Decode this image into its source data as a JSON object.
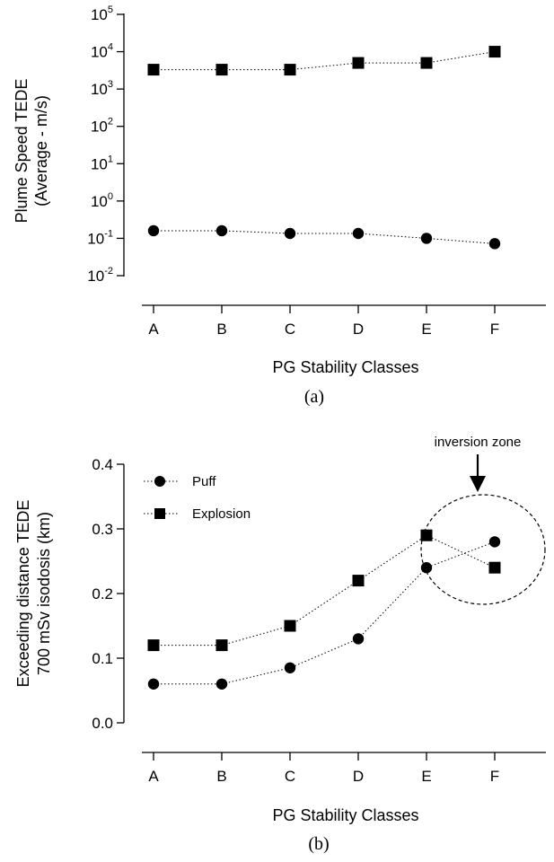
{
  "chart_data": [
    {
      "type": "line",
      "panel_label": "(a)",
      "xlabel": "PG Stability Classes",
      "ylabel_line1": "Plume Speed TEDE",
      "ylabel_line2": "(Average - m/s)",
      "y_scale": "log",
      "ylim": [
        0.01,
        100000
      ],
      "ytick_base": "10",
      "yticks": [
        {
          "exp": "5",
          "value": 100000
        },
        {
          "exp": "4",
          "value": 10000
        },
        {
          "exp": "3",
          "value": 1000
        },
        {
          "exp": "2",
          "value": 100
        },
        {
          "exp": "1",
          "value": 10
        },
        {
          "exp": "0",
          "value": 1
        },
        {
          "exp": "-1",
          "value": 0.1
        },
        {
          "exp": "-2",
          "value": 0.01
        }
      ],
      "categories": [
        "A",
        "B",
        "C",
        "D",
        "E",
        "F"
      ],
      "series": [
        {
          "marker": "square",
          "values": [
            3300,
            3300,
            3300,
            5000,
            5000,
            10000
          ]
        },
        {
          "marker": "circle",
          "values": [
            0.16,
            0.16,
            0.135,
            0.135,
            0.1,
            0.072
          ]
        }
      ],
      "grid": false
    },
    {
      "type": "line",
      "panel_label": "(b)",
      "xlabel": "PG Stability Classes",
      "ylabel_line1": "Exceeding distance TEDE",
      "ylabel_line2": "700 mSv isodosis (km)",
      "ylim": [
        0.0,
        0.4
      ],
      "yticks": [
        "0.0",
        "0.1",
        "0.2",
        "0.3",
        "0.4"
      ],
      "categories": [
        "A",
        "B",
        "C",
        "D",
        "E",
        "F"
      ],
      "series": [
        {
          "name": "Puff",
          "marker": "circle",
          "values": [
            0.06,
            0.06,
            0.085,
            0.13,
            0.24,
            0.28
          ]
        },
        {
          "name": "Explosion",
          "marker": "square",
          "values": [
            0.12,
            0.12,
            0.15,
            0.22,
            0.29,
            0.24
          ]
        }
      ],
      "legend_position": "top-left",
      "annotation": "inversion zone",
      "grid": false
    }
  ]
}
